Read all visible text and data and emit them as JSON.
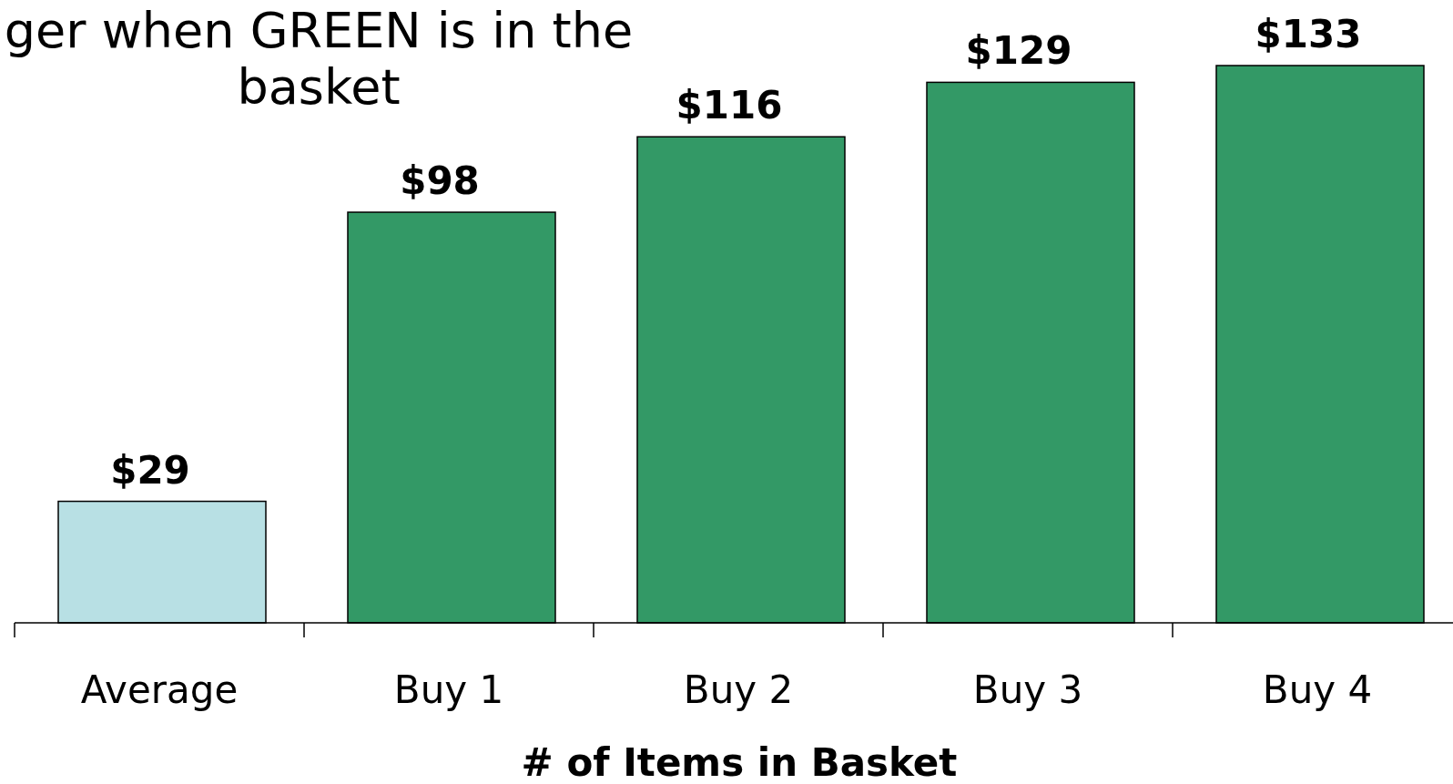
{
  "chart_data": {
    "type": "bar",
    "title": "ger when GREEN is in the basket",
    "xlabel": "# of Items in Basket",
    "categories": [
      "Average",
      "Buy 1",
      "Buy 2",
      "Buy 3",
      "Buy 4"
    ],
    "values": [
      29,
      98,
      116,
      129,
      133
    ],
    "value_labels": [
      "$29",
      "$98",
      "$116",
      "$129",
      "$133"
    ],
    "colors": [
      "#b8e0e4",
      "#339966",
      "#339966",
      "#339966",
      "#339966"
    ]
  }
}
